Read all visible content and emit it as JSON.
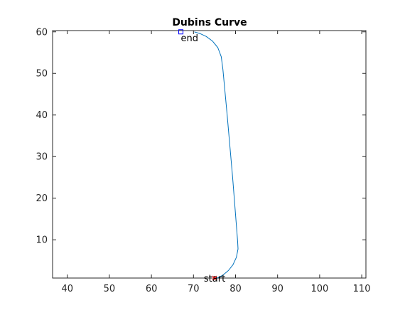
{
  "chart_data": {
    "type": "line",
    "title": "Dubins Curve",
    "xlabel": "",
    "ylabel": "",
    "xlim": [
      36.5,
      111
    ],
    "ylim": [
      0.8,
      60.3
    ],
    "xticks": [
      40,
      50,
      60,
      70,
      80,
      90,
      100,
      110
    ],
    "yticks": [
      10,
      20,
      30,
      40,
      50,
      60
    ],
    "grid": false,
    "series": [
      {
        "color": "#0072bd",
        "points": [
          [
            75.7,
            0.8
          ],
          [
            77.0,
            1.5
          ],
          [
            78.3,
            2.6
          ],
          [
            79.4,
            4.0
          ],
          [
            80.2,
            5.8
          ],
          [
            80.6,
            7.8
          ],
          [
            80.5,
            9.5
          ],
          [
            79.3,
            25.0
          ],
          [
            78.0,
            40.0
          ],
          [
            77.0,
            51.0
          ],
          [
            76.6,
            54.0
          ],
          [
            75.8,
            56.2
          ],
          [
            74.5,
            57.8
          ],
          [
            73.0,
            58.9
          ],
          [
            71.5,
            59.6
          ],
          [
            70.2,
            60.0
          ]
        ]
      }
    ],
    "markers": [
      {
        "label": "start",
        "x": 75.0,
        "y": 0.8,
        "shape": "star",
        "color": "#ff0000"
      },
      {
        "label": "end",
        "x": 67.0,
        "y": 60.0,
        "shape": "square",
        "color": "#0000ff"
      }
    ]
  }
}
